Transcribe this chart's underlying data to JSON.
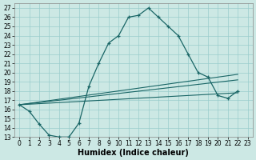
{
  "xlabel": "Humidex (Indice chaleur)",
  "bg_color": "#cce8e4",
  "grid_color": "#99cccc",
  "line_color": "#1a6666",
  "xlim": [
    -0.5,
    23.5
  ],
  "ylim": [
    13,
    27.5
  ],
  "xticks": [
    0,
    1,
    2,
    3,
    4,
    5,
    6,
    7,
    8,
    9,
    10,
    11,
    12,
    13,
    14,
    15,
    16,
    17,
    18,
    19,
    20,
    21,
    22,
    23
  ],
  "yticks": [
    13,
    14,
    15,
    16,
    17,
    18,
    19,
    20,
    21,
    22,
    23,
    24,
    25,
    26,
    27
  ],
  "line1_x": [
    0,
    1,
    2,
    3,
    4,
    5,
    6,
    7,
    8,
    9,
    10,
    11,
    12,
    13,
    14,
    15,
    16,
    17,
    18,
    19,
    20,
    21,
    22
  ],
  "line1_y": [
    16.5,
    15.8,
    14.4,
    13.2,
    13.0,
    13.0,
    14.5,
    18.5,
    21.0,
    23.2,
    24.0,
    26.0,
    26.2,
    27.0,
    26.0,
    25.0,
    24.0,
    22.0,
    20.0,
    19.5,
    17.5,
    17.2,
    18.0
  ],
  "line2_x": [
    0,
    22
  ],
  "line2_y": [
    16.5,
    19.8
  ],
  "line3_x": [
    0,
    22
  ],
  "line3_y": [
    16.5,
    19.2
  ],
  "line4_x": [
    0,
    22
  ],
  "line4_y": [
    16.5,
    17.8
  ],
  "font_size_tick": 5.5,
  "font_size_label": 7.0
}
